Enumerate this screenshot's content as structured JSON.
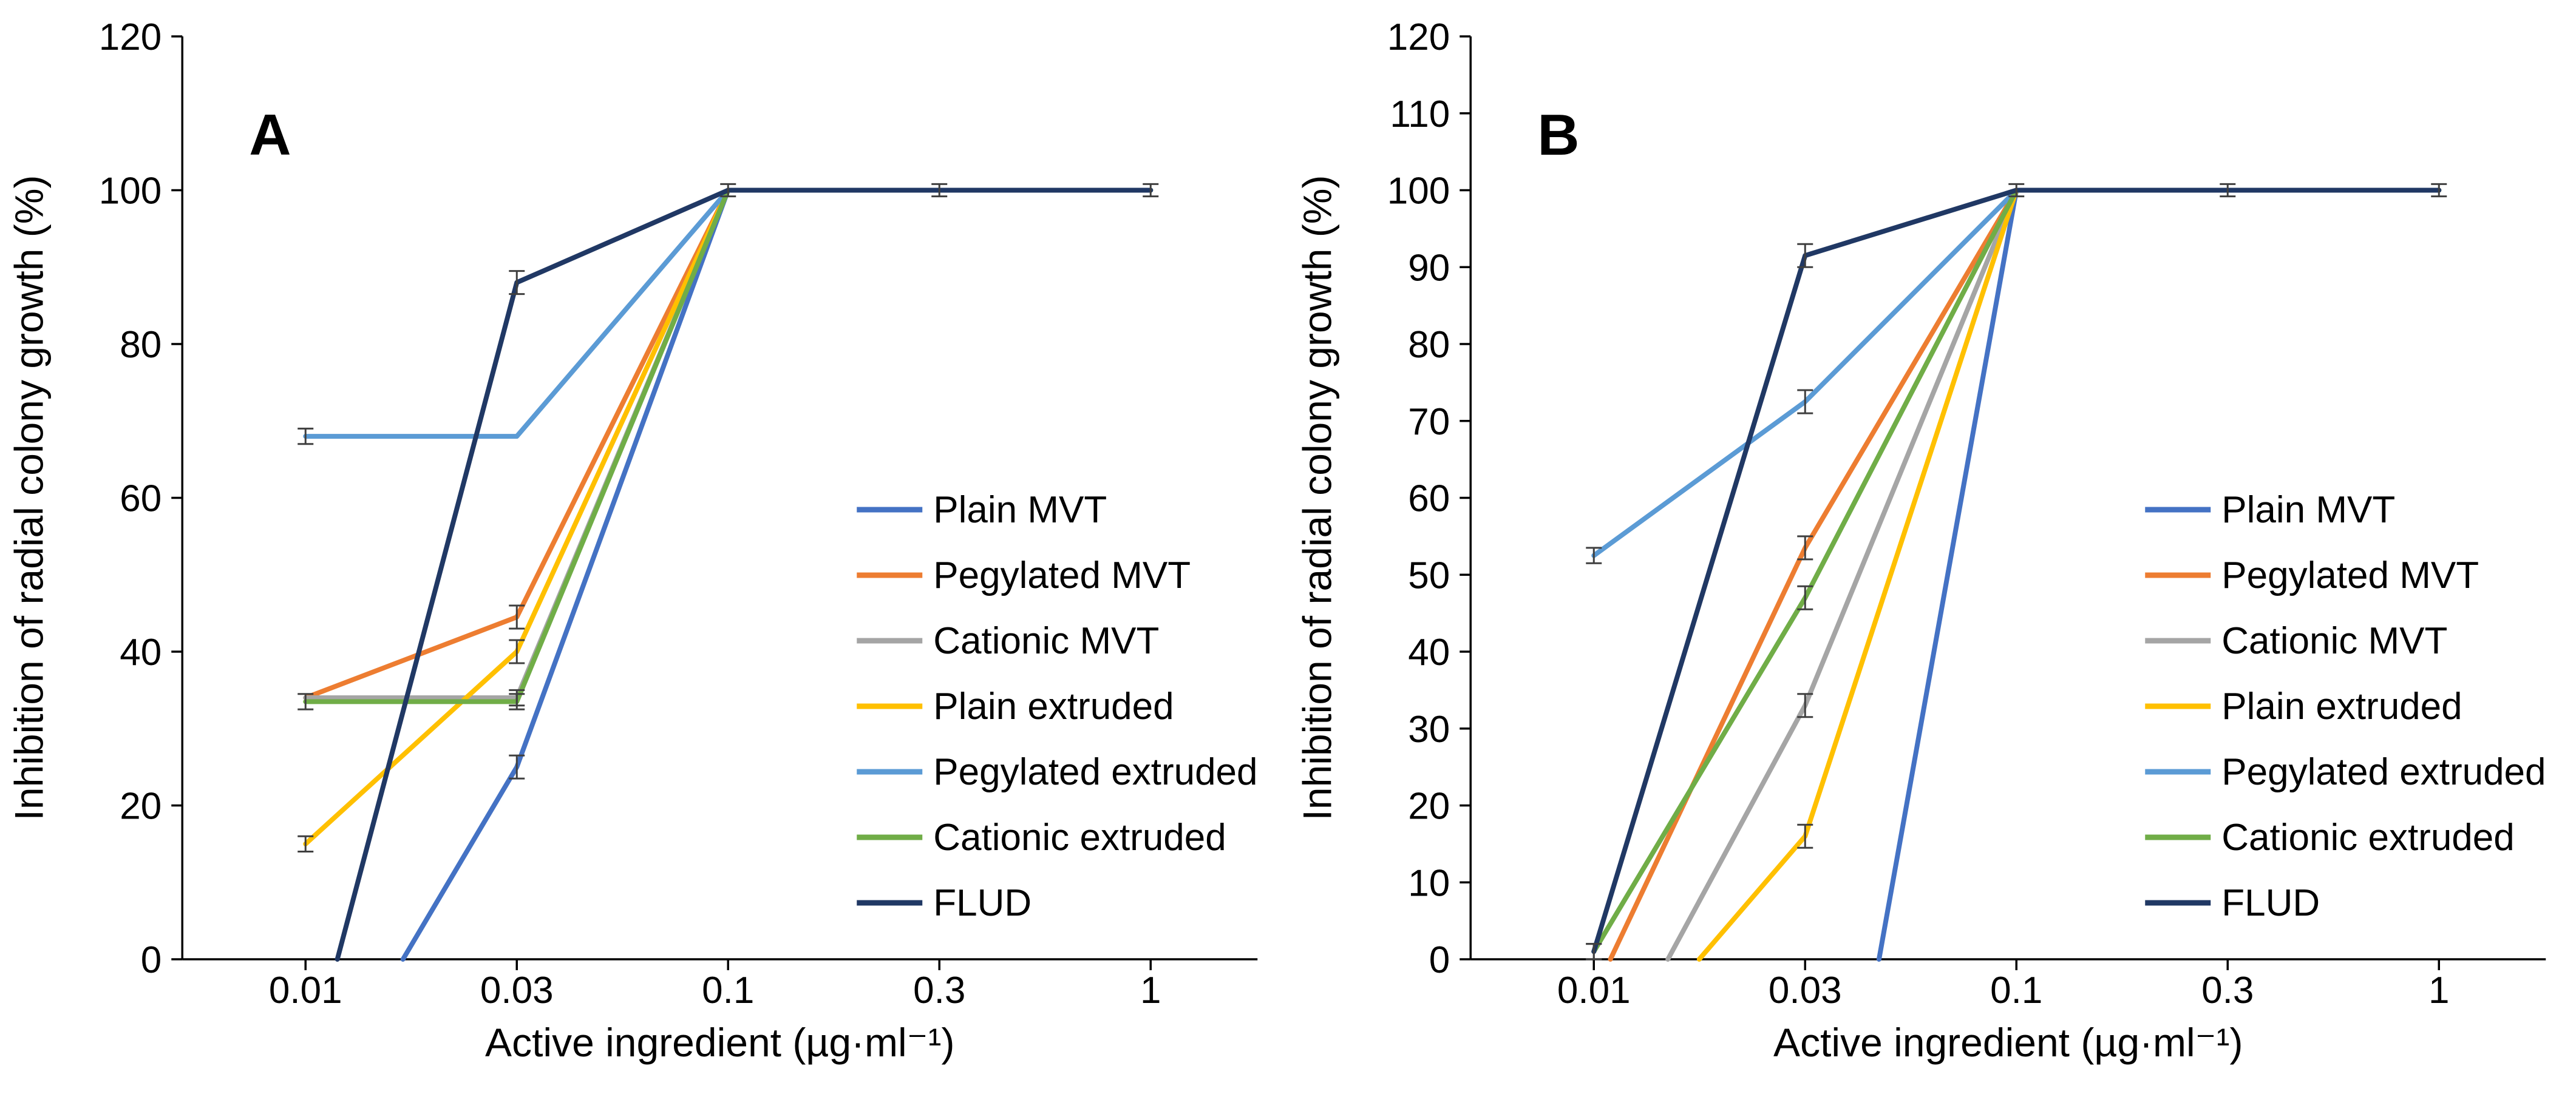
{
  "page": {
    "background": "#ffffff"
  },
  "chart_data": [
    {
      "panel_label": "A",
      "type": "line",
      "xlabel": "Active ingredient (µg·ml⁻¹)",
      "ylabel": "Inhibition of radial colony growth (%)",
      "x_scale": "log",
      "x_ticks": [
        "0.01",
        "0.03",
        "0.1",
        "0.3",
        "1"
      ],
      "x_tick_values": [
        0.01,
        0.03,
        0.1,
        0.3,
        1
      ],
      "ylim": [
        0,
        120
      ],
      "y_ticks": [
        0,
        20,
        40,
        60,
        80,
        100,
        120
      ],
      "grid": false,
      "legend_position": "inside-right",
      "series": [
        {
          "name": "Plain MVT",
          "color": "#4472C4",
          "points": [
            {
              "x": 0.0166,
              "y": 0,
              "err": 0
            },
            {
              "x": 0.03,
              "y": 25,
              "err": 1.5
            },
            {
              "x": 0.1,
              "y": 100,
              "err": 0
            },
            {
              "x": 0.3,
              "y": 100,
              "err": 0
            },
            {
              "x": 1,
              "y": 100,
              "err": 0
            }
          ]
        },
        {
          "name": "Pegylated MVT",
          "color": "#ED7D31",
          "points": [
            {
              "x": 0.01,
              "y": 34,
              "err": 0
            },
            {
              "x": 0.03,
              "y": 44.5,
              "err": 1.5
            },
            {
              "x": 0.1,
              "y": 100,
              "err": 0
            },
            {
              "x": 0.3,
              "y": 100,
              "err": 0
            },
            {
              "x": 1,
              "y": 100,
              "err": 0
            }
          ]
        },
        {
          "name": "Cationic MVT",
          "color": "#A5A5A5",
          "points": [
            {
              "x": 0.01,
              "y": 34,
              "err": 0
            },
            {
              "x": 0.03,
              "y": 34,
              "err": 1
            },
            {
              "x": 0.1,
              "y": 100,
              "err": 0
            },
            {
              "x": 0.3,
              "y": 100,
              "err": 0
            },
            {
              "x": 1,
              "y": 100,
              "err": 0
            }
          ]
        },
        {
          "name": "Plain extruded",
          "color": "#FFC000",
          "points": [
            {
              "x": 0.01,
              "y": 15,
              "err": 1
            },
            {
              "x": 0.03,
              "y": 40,
              "err": 1.5
            },
            {
              "x": 0.1,
              "y": 100,
              "err": 0
            },
            {
              "x": 0.3,
              "y": 100,
              "err": 0
            },
            {
              "x": 1,
              "y": 100,
              "err": 0
            }
          ]
        },
        {
          "name": "Pegylated extruded",
          "color": "#5B9BD5",
          "points": [
            {
              "x": 0.01,
              "y": 68,
              "err": 1
            },
            {
              "x": 0.03,
              "y": 68,
              "err": 0
            },
            {
              "x": 0.1,
              "y": 100,
              "err": 0
            },
            {
              "x": 0.3,
              "y": 100,
              "err": 0
            },
            {
              "x": 1,
              "y": 100,
              "err": 0
            }
          ]
        },
        {
          "name": "Cationic extruded",
          "color": "#70AD47",
          "points": [
            {
              "x": 0.01,
              "y": 33.5,
              "err": 1
            },
            {
              "x": 0.03,
              "y": 33.5,
              "err": 1
            },
            {
              "x": 0.1,
              "y": 100,
              "err": 0
            },
            {
              "x": 0.3,
              "y": 100,
              "err": 0
            },
            {
              "x": 1,
              "y": 100,
              "err": 0
            }
          ]
        },
        {
          "name": "FLUD",
          "color": "#203864",
          "points": [
            {
              "x": 0.0118,
              "y": 0,
              "err": 0
            },
            {
              "x": 0.03,
              "y": 88,
              "err": 1.5
            },
            {
              "x": 0.1,
              "y": 100,
              "err": 0.8
            },
            {
              "x": 0.3,
              "y": 100,
              "err": 0.8
            },
            {
              "x": 1,
              "y": 100,
              "err": 0.8
            }
          ]
        }
      ]
    },
    {
      "panel_label": "B",
      "type": "line",
      "xlabel": "Active ingredient (µg·ml⁻¹)",
      "ylabel": "Inhibition of radial colony growth (%)",
      "x_scale": "log",
      "x_ticks": [
        "0.01",
        "0.03",
        "0.1",
        "0.3",
        "1"
      ],
      "x_tick_values": [
        0.01,
        0.03,
        0.1,
        0.3,
        1
      ],
      "ylim": [
        0,
        120
      ],
      "y_ticks": [
        0,
        10,
        20,
        30,
        40,
        50,
        60,
        70,
        80,
        90,
        100,
        110,
        120
      ],
      "grid": false,
      "legend_position": "inside-right",
      "series": [
        {
          "name": "Plain MVT",
          "color": "#4472C4",
          "points": [
            {
              "x": 0.0457,
              "y": 0,
              "err": 0
            },
            {
              "x": 0.1,
              "y": 100,
              "err": 0
            },
            {
              "x": 0.3,
              "y": 100,
              "err": 0
            },
            {
              "x": 1,
              "y": 100,
              "err": 0
            }
          ]
        },
        {
          "name": "Pegylated MVT",
          "color": "#ED7D31",
          "points": [
            {
              "x": 0.0109,
              "y": 0,
              "err": 0
            },
            {
              "x": 0.03,
              "y": 53.5,
              "err": 1.5
            },
            {
              "x": 0.1,
              "y": 100,
              "err": 0
            },
            {
              "x": 0.3,
              "y": 100,
              "err": 0
            },
            {
              "x": 1,
              "y": 100,
              "err": 0
            }
          ]
        },
        {
          "name": "Cationic MVT",
          "color": "#A5A5A5",
          "points": [
            {
              "x": 0.0147,
              "y": 0,
              "err": 0
            },
            {
              "x": 0.03,
              "y": 33,
              "err": 1.5
            },
            {
              "x": 0.1,
              "y": 100,
              "err": 0
            },
            {
              "x": 0.3,
              "y": 100,
              "err": 0
            },
            {
              "x": 1,
              "y": 100,
              "err": 0
            }
          ]
        },
        {
          "name": "Plain extruded",
          "color": "#FFC000",
          "points": [
            {
              "x": 0.0173,
              "y": 0,
              "err": 0
            },
            {
              "x": 0.03,
              "y": 16,
              "err": 1.5
            },
            {
              "x": 0.1,
              "y": 100,
              "err": 0
            },
            {
              "x": 0.3,
              "y": 100,
              "err": 0
            },
            {
              "x": 1,
              "y": 100,
              "err": 0
            }
          ]
        },
        {
          "name": "Pegylated extruded",
          "color": "#5B9BD5",
          "points": [
            {
              "x": 0.01,
              "y": 52.5,
              "err": 1
            },
            {
              "x": 0.03,
              "y": 72.5,
              "err": 1.5
            },
            {
              "x": 0.1,
              "y": 100,
              "err": 0
            },
            {
              "x": 0.3,
              "y": 100,
              "err": 0
            },
            {
              "x": 1,
              "y": 100,
              "err": 0
            }
          ]
        },
        {
          "name": "Cationic extruded",
          "color": "#70AD47",
          "points": [
            {
              "x": 0.01,
              "y": 1,
              "err": 1
            },
            {
              "x": 0.03,
              "y": 47,
              "err": 1.5
            },
            {
              "x": 0.1,
              "y": 100,
              "err": 0
            },
            {
              "x": 0.3,
              "y": 100,
              "err": 0
            },
            {
              "x": 1,
              "y": 100,
              "err": 0
            }
          ]
        },
        {
          "name": "FLUD",
          "color": "#203864",
          "points": [
            {
              "x": 0.01,
              "y": 1,
              "err": 1
            },
            {
              "x": 0.03,
              "y": 91.5,
              "err": 1.5
            },
            {
              "x": 0.1,
              "y": 100,
              "err": 0.8
            },
            {
              "x": 0.3,
              "y": 100,
              "err": 0.8
            },
            {
              "x": 1,
              "y": 100,
              "err": 0.8
            }
          ]
        }
      ]
    }
  ]
}
